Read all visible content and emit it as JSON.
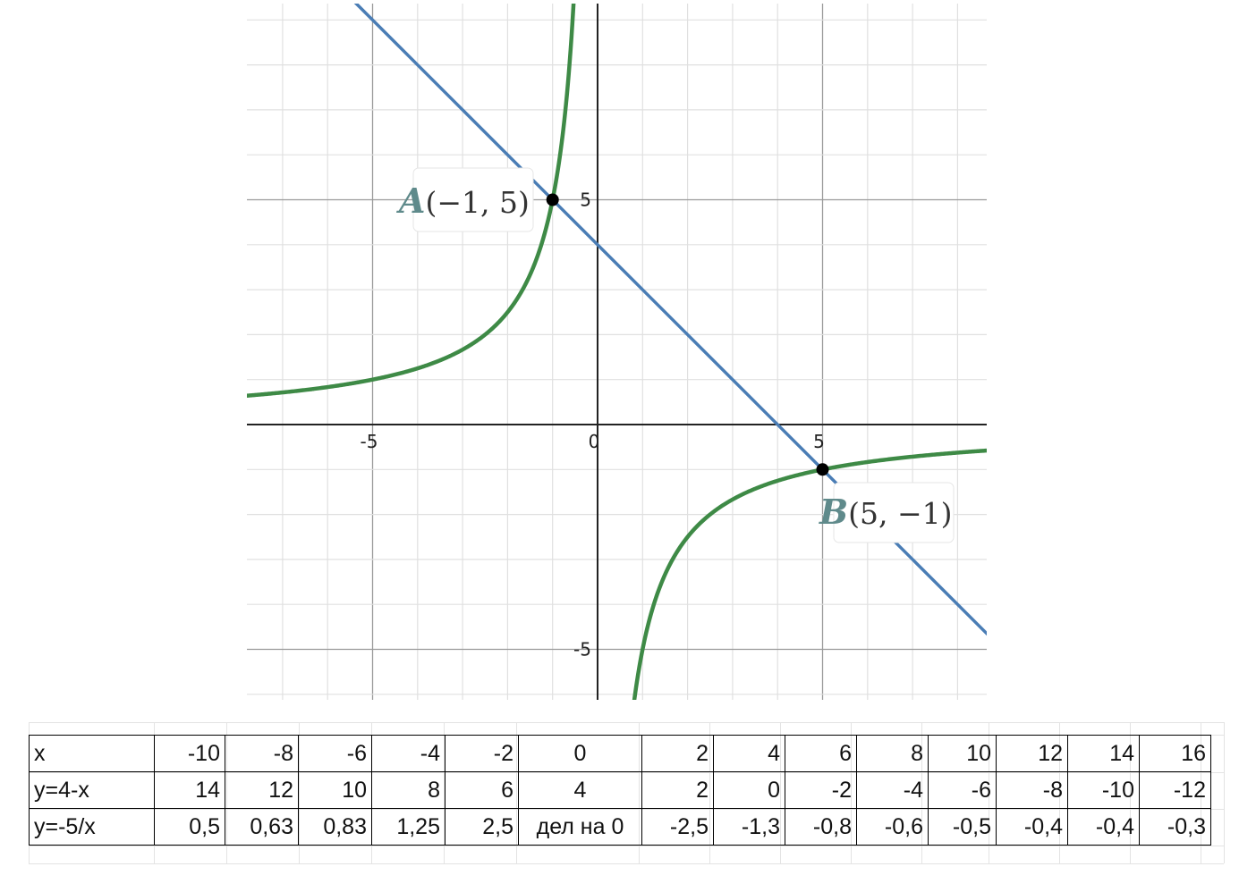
{
  "chart_data": {
    "type": "line",
    "xlim": [
      -7.8,
      8.7
    ],
    "ylim": [
      -6.1,
      9.4
    ],
    "grid": true,
    "minor_grid_step": 1,
    "major_grid_step": 5,
    "x_ticks": [
      -5,
      0,
      5
    ],
    "y_ticks": [
      5,
      -5
    ],
    "x_tick_labels": [
      "-5",
      "0",
      "5"
    ],
    "y_tick_labels": [
      "5",
      "-5"
    ],
    "series": [
      {
        "formula": "y = 4 - x",
        "color": "#4a7db5",
        "kind": "linear",
        "slope": -1,
        "intercept": 4
      },
      {
        "formula": "y = -5/x",
        "color": "#3e8a46",
        "kind": "hyperbola",
        "k": -5
      }
    ],
    "points": [
      {
        "letter": "A",
        "coords": "(−1, 5)",
        "x": -1,
        "y": 5
      },
      {
        "letter": "B",
        "coords": "(5, −1)",
        "x": 5,
        "y": -1
      }
    ]
  },
  "table": {
    "rows": [
      {
        "label": "x",
        "cells": [
          "-10",
          "-8",
          "-6",
          "-4",
          "-2",
          "0",
          "2",
          "4",
          "6",
          "8",
          "10",
          "12",
          "14",
          "16"
        ]
      },
      {
        "label": "y=4-x",
        "cells": [
          "14",
          "12",
          "10",
          "8",
          "6",
          "4",
          "2",
          "0",
          "-2",
          "-4",
          "-6",
          "-8",
          "-10",
          "-12"
        ]
      },
      {
        "label": "y=-5/x",
        "cells": [
          "0,5",
          "0,63",
          "0,83",
          "1,25",
          "2,5",
          "дел на 0",
          "-2,5",
          "-1,3",
          "-0,8",
          "-0,6",
          "-0,5",
          "-0,4",
          "-0,4",
          "-0,3"
        ]
      }
    ]
  }
}
